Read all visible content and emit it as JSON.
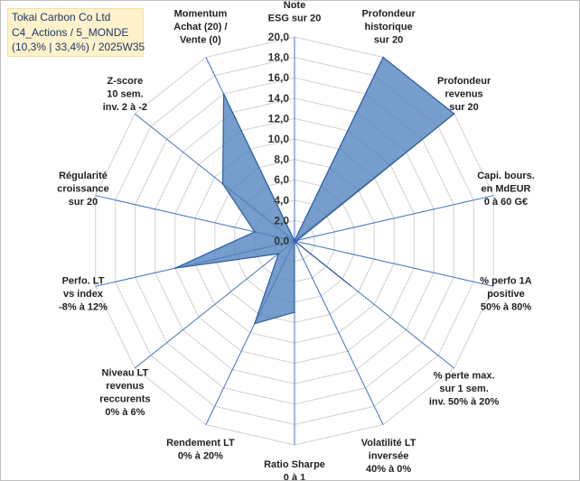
{
  "header": {
    "lines": [
      "Tokai Carbon Co Ltd",
      "C4_Actions / 5_MONDE",
      "(10,3% | 33,4%) / 2025W35"
    ]
  },
  "colors": {
    "fill": "#4f81bd",
    "stroke": "#2e5ea0",
    "spoke": "#4472c4",
    "grid": "#d0d0d0",
    "title_bg": "#fff2cc"
  },
  "chart_data": {
    "type": "radar",
    "title": "",
    "rmin": 0,
    "rmax": 20,
    "ticks": [
      "0,0",
      "2,0",
      "4,0",
      "6,0",
      "8,0",
      "10,0",
      "12,0",
      "14,0",
      "16,0",
      "18,0",
      "20,0"
    ],
    "grid": true,
    "axes": [
      {
        "label": [
          "Note",
          "ESG sur 20"
        ],
        "value": 0
      },
      {
        "label": [
          "Profondeur",
          "historique",
          "sur 20"
        ],
        "value": 20
      },
      {
        "label": [
          "Profondeur",
          "revenus",
          "sur 20"
        ],
        "value": 20
      },
      {
        "label": [
          "Capi. bours.",
          "en MdEUR",
          "0 à 60 G€"
        ],
        "value": 0.3
      },
      {
        "label": [
          "% perfo 1A",
          "positive",
          "50% à 80%"
        ],
        "value": 0
      },
      {
        "label": [
          "% perte max.",
          "sur 1 sem.",
          "inv. 50% à 20%"
        ],
        "value": 7
      },
      {
        "label": [
          "Volatilité LT",
          "inversée",
          "40% à 0%"
        ],
        "value": 0
      },
      {
        "label": [
          "Ratio Sharpe",
          "0 à 1"
        ],
        "value": 7
      },
      {
        "label": [
          "Rendement LT",
          "0% à 20%"
        ],
        "value": 9
      },
      {
        "label": [
          "Niveau LT",
          "revenus",
          "reccurents",
          "0% à 6%"
        ],
        "value": 2
      },
      {
        "label": [
          "Perfo. LT",
          "vs index",
          "-8% à 12%"
        ],
        "value": 12
      },
      {
        "label": [
          "Régularité",
          "croissance",
          "sur 20"
        ],
        "value": 4
      },
      {
        "label": [
          "Z-score",
          "10 sem.",
          "inv. 2 à -2"
        ],
        "value": 9
      },
      {
        "label": [
          "Momentum",
          "Achat (20) /",
          "Vente (0)"
        ],
        "value": 16
      }
    ]
  }
}
